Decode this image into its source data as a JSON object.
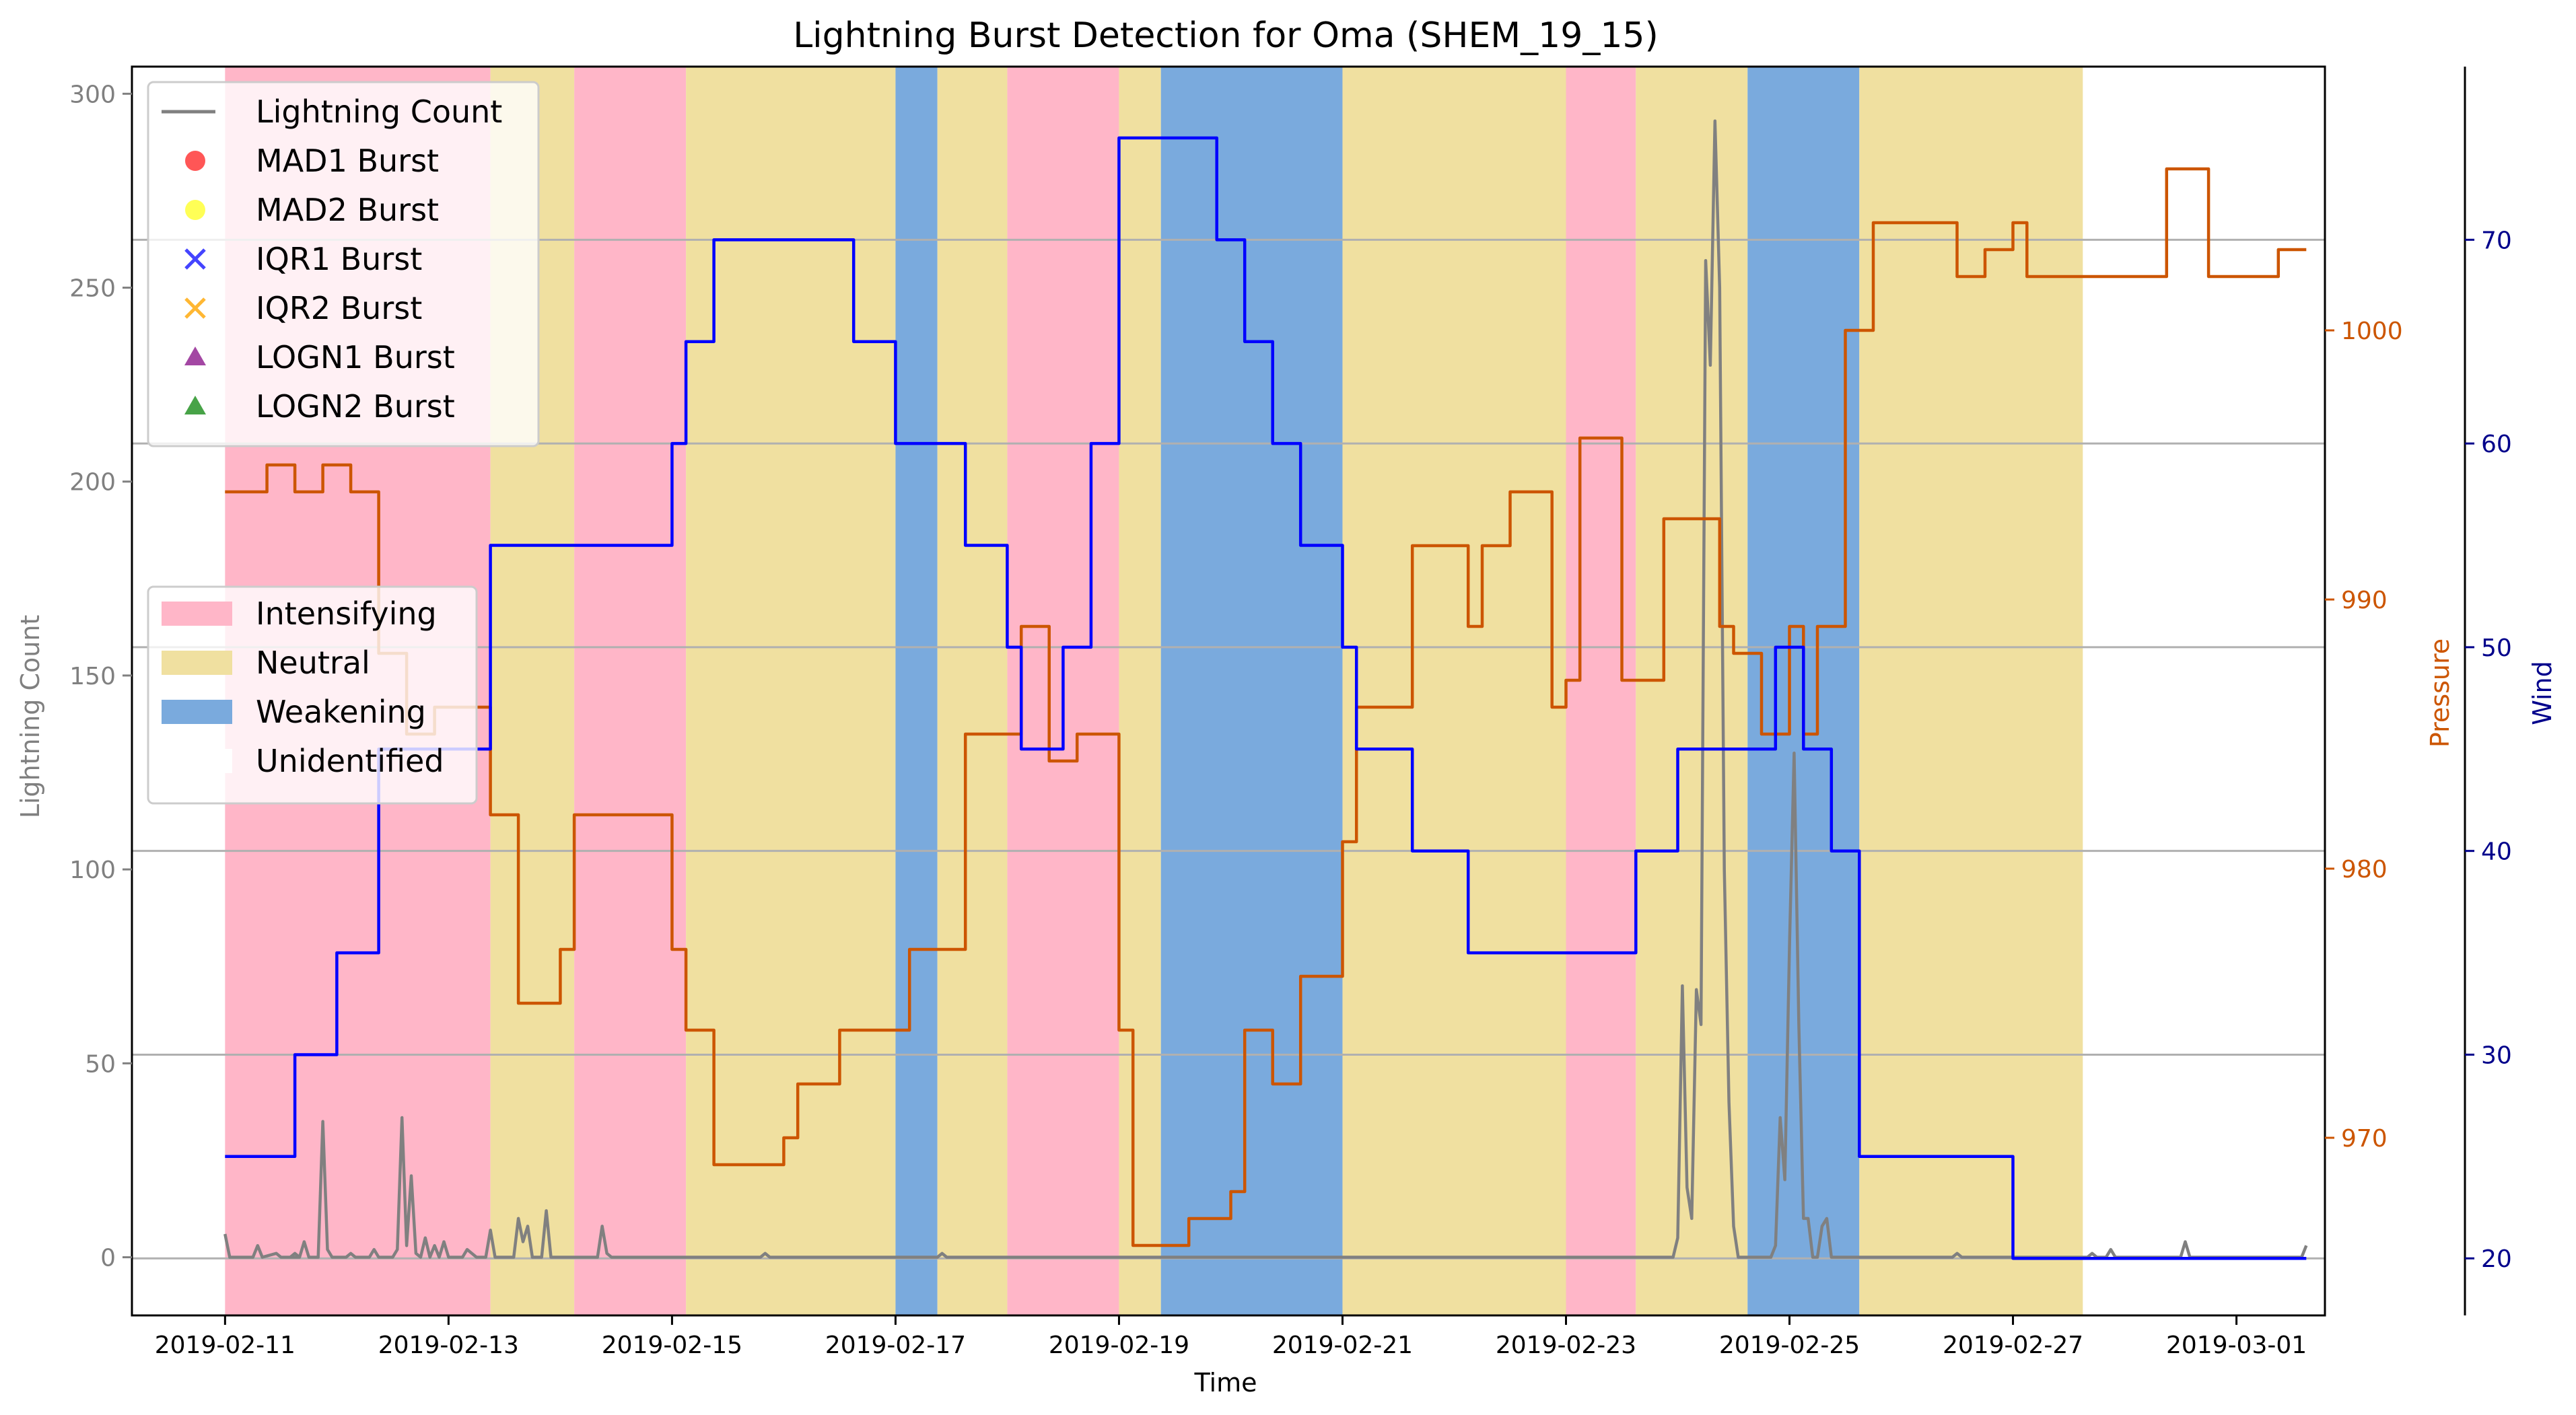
{
  "chart_data": {
    "type": "line",
    "title": "Lightning Burst Detection for Oma (SHEM_19_15)",
    "xlabel": "Time",
    "x_ticks": [
      "2019-02-11",
      "2019-02-13",
      "2019-02-15",
      "2019-02-17",
      "2019-02-19",
      "2019-02-21",
      "2019-02-23",
      "2019-02-25",
      "2019-02-27",
      "2019-03-01"
    ],
    "xlim": [
      "2019-02-10 04:00",
      "2019-03-01 19:00"
    ],
    "grid": true,
    "axes": {
      "lightning": {
        "label": "Lightning Count",
        "ylim": [
          -15,
          307
        ],
        "ticks": [
          0,
          50,
          100,
          150,
          200,
          250,
          300
        ],
        "color": "#808080",
        "position": "left"
      },
      "pressure": {
        "label": "Pressure",
        "ylim": [
          963.4,
          1009.8
        ],
        "ticks": [
          970,
          980,
          990,
          1000
        ],
        "color": "#cc5500",
        "position": "right"
      },
      "wind": {
        "label": "Wind",
        "ylim": [
          17.2,
          78.5
        ],
        "ticks": [
          20,
          30,
          40,
          50,
          60,
          70
        ],
        "color": "#00008b",
        "position": "far-right"
      }
    },
    "phases": [
      {
        "start": "2019-02-11 00:00",
        "end": "2019-02-13 09:00",
        "phase": "Intensifying"
      },
      {
        "start": "2019-02-13 09:00",
        "end": "2019-02-14 03:00",
        "phase": "Neutral"
      },
      {
        "start": "2019-02-14 03:00",
        "end": "2019-02-15 03:00",
        "phase": "Intensifying"
      },
      {
        "start": "2019-02-15 03:00",
        "end": "2019-02-17 00:00",
        "phase": "Neutral"
      },
      {
        "start": "2019-02-17 00:00",
        "end": "2019-02-17 09:00",
        "phase": "Weakening"
      },
      {
        "start": "2019-02-17 09:00",
        "end": "2019-02-18 00:00",
        "phase": "Neutral"
      },
      {
        "start": "2019-02-18 00:00",
        "end": "2019-02-19 00:00",
        "phase": "Intensifying"
      },
      {
        "start": "2019-02-19 00:00",
        "end": "2019-02-19 09:00",
        "phase": "Neutral"
      },
      {
        "start": "2019-02-19 09:00",
        "end": "2019-02-21 00:00",
        "phase": "Weakening"
      },
      {
        "start": "2019-02-21 00:00",
        "end": "2019-02-23 00:00",
        "phase": "Neutral"
      },
      {
        "start": "2019-02-23 00:00",
        "end": "2019-02-23 15:00",
        "phase": "Intensifying"
      },
      {
        "start": "2019-02-23 15:00",
        "end": "2019-02-24 15:00",
        "phase": "Neutral"
      },
      {
        "start": "2019-02-24 15:00",
        "end": "2019-02-25 15:00",
        "phase": "Weakening"
      },
      {
        "start": "2019-02-25 15:00",
        "end": "2019-02-27 15:00",
        "phase": "Neutral"
      }
    ],
    "series": [
      {
        "name": "Lightning Count",
        "axis": "lightning",
        "color": "#808080",
        "points": [
          [
            "2019-02-11 00:00",
            6
          ],
          [
            "2019-02-11 01:00",
            0
          ],
          [
            "2019-02-11 06:00",
            0
          ],
          [
            "2019-02-11 07:00",
            3
          ],
          [
            "2019-02-11 08:00",
            0
          ],
          [
            "2019-02-11 11:00",
            1
          ],
          [
            "2019-02-11 12:00",
            0
          ],
          [
            "2019-02-11 14:00",
            0
          ],
          [
            "2019-02-11 15:00",
            1
          ],
          [
            "2019-02-11 16:00",
            0
          ],
          [
            "2019-02-11 14:00",
            0
          ],
          [
            "2019-02-11 15:00",
            0
          ],
          [
            "2019-02-11 16:00",
            0
          ],
          [
            "2019-02-11 17:00",
            4
          ],
          [
            "2019-02-11 18:00",
            0
          ],
          [
            "2019-02-11 20:00",
            0
          ],
          [
            "2019-02-11 21:00",
            35
          ],
          [
            "2019-02-11 22:00",
            2
          ],
          [
            "2019-02-11 23:00",
            0
          ],
          [
            "2019-02-12 02:00",
            0
          ],
          [
            "2019-02-12 03:00",
            1
          ],
          [
            "2019-02-12 04:00",
            0
          ],
          [
            "2019-02-12 07:00",
            0
          ],
          [
            "2019-02-12 08:00",
            2
          ],
          [
            "2019-02-12 09:00",
            0
          ],
          [
            "2019-02-12 12:00",
            0
          ],
          [
            "2019-02-12 13:00",
            2
          ],
          [
            "2019-02-12 14:00",
            36
          ],
          [
            "2019-02-12 15:00",
            3
          ],
          [
            "2019-02-12 16:00",
            21
          ],
          [
            "2019-02-12 17:00",
            1
          ],
          [
            "2019-02-12 18:00",
            0
          ],
          [
            "2019-02-12 19:00",
            5
          ],
          [
            "2019-02-12 20:00",
            0
          ],
          [
            "2019-02-12 21:00",
            3
          ],
          [
            "2019-02-12 22:00",
            0
          ],
          [
            "2019-02-12 23:00",
            4
          ],
          [
            "2019-02-13 00:00",
            0
          ],
          [
            "2019-02-13 03:00",
            0
          ],
          [
            "2019-02-13 04:00",
            2
          ],
          [
            "2019-02-13 05:00",
            1
          ],
          [
            "2019-02-13 06:00",
            0
          ],
          [
            "2019-02-13 08:00",
            0
          ],
          [
            "2019-02-13 09:00",
            7
          ],
          [
            "2019-02-13 10:00",
            0
          ],
          [
            "2019-02-13 14:00",
            0
          ],
          [
            "2019-02-13 15:00",
            10
          ],
          [
            "2019-02-13 16:00",
            4
          ],
          [
            "2019-02-13 17:00",
            8
          ],
          [
            "2019-02-13 18:00",
            0
          ],
          [
            "2019-02-13 20:00",
            0
          ],
          [
            "2019-02-13 21:00",
            12
          ],
          [
            "2019-02-13 22:00",
            0
          ],
          [
            "2019-02-14 08:00",
            0
          ],
          [
            "2019-02-14 09:00",
            8
          ],
          [
            "2019-02-14 10:00",
            1
          ],
          [
            "2019-02-14 11:00",
            0
          ],
          [
            "2019-02-15 19:00",
            0
          ],
          [
            "2019-02-15 20:00",
            1
          ],
          [
            "2019-02-15 21:00",
            0
          ],
          [
            "2019-02-17 09:00",
            0
          ],
          [
            "2019-02-17 10:00",
            1
          ],
          [
            "2019-02-17 11:00",
            0
          ],
          [
            "2019-02-23 23:00",
            0
          ],
          [
            "2019-02-24 00:00",
            5
          ],
          [
            "2019-02-24 01:00",
            70
          ],
          [
            "2019-02-24 02:00",
            18
          ],
          [
            "2019-02-24 03:00",
            10
          ],
          [
            "2019-02-24 04:00",
            69
          ],
          [
            "2019-02-24 05:00",
            60
          ],
          [
            "2019-02-24 06:00",
            257
          ],
          [
            "2019-02-24 07:00",
            230
          ],
          [
            "2019-02-24 08:00",
            293
          ],
          [
            "2019-02-24 09:00",
            250
          ],
          [
            "2019-02-24 10:00",
            100
          ],
          [
            "2019-02-24 11:00",
            40
          ],
          [
            "2019-02-24 12:00",
            8
          ],
          [
            "2019-02-24 13:00",
            0
          ],
          [
            "2019-02-24 20:00",
            0
          ],
          [
            "2019-02-24 21:00",
            3
          ],
          [
            "2019-02-24 22:00",
            36
          ],
          [
            "2019-02-24 23:00",
            20
          ],
          [
            "2019-02-25 00:00",
            80
          ],
          [
            "2019-02-25 01:00",
            130
          ],
          [
            "2019-02-25 02:00",
            60
          ],
          [
            "2019-02-25 03:00",
            10
          ],
          [
            "2019-02-25 04:00",
            10
          ],
          [
            "2019-02-25 05:00",
            0
          ],
          [
            "2019-02-25 06:00",
            0
          ],
          [
            "2019-02-25 07:00",
            8
          ],
          [
            "2019-02-25 08:00",
            10
          ],
          [
            "2019-02-25 09:00",
            0
          ],
          [
            "2019-02-26 11:00",
            0
          ],
          [
            "2019-02-26 12:00",
            1
          ],
          [
            "2019-02-26 13:00",
            0
          ],
          [
            "2019-02-27 16:00",
            0
          ],
          [
            "2019-02-27 17:00",
            1
          ],
          [
            "2019-02-27 18:00",
            0
          ],
          [
            "2019-02-27 20:00",
            0
          ],
          [
            "2019-02-27 21:00",
            2
          ],
          [
            "2019-02-27 22:00",
            0
          ],
          [
            "2019-02-28 12:00",
            0
          ],
          [
            "2019-02-28 13:00",
            4
          ],
          [
            "2019-02-28 14:00",
            0
          ],
          [
            "2019-03-01 14:00",
            0
          ],
          [
            "2019-03-01 15:00",
            3
          ]
        ]
      },
      {
        "name": "Pressure",
        "axis": "pressure",
        "color": "#cc5500",
        "steps": [
          [
            "2019-02-11 00:00",
            994
          ],
          [
            "2019-02-11 09:00",
            995
          ],
          [
            "2019-02-11 15:00",
            994
          ],
          [
            "2019-02-11 21:00",
            995
          ],
          [
            "2019-02-12 03:00",
            994
          ],
          [
            "2019-02-12 09:00",
            988
          ],
          [
            "2019-02-12 15:00",
            985
          ],
          [
            "2019-02-12 21:00",
            986
          ],
          [
            "2019-02-13 09:00",
            982
          ],
          [
            "2019-02-13 15:00",
            975
          ],
          [
            "2019-02-14 00:00",
            977
          ],
          [
            "2019-02-14 03:00",
            982
          ],
          [
            "2019-02-15 00:00",
            977
          ],
          [
            "2019-02-15 03:00",
            974
          ],
          [
            "2019-02-15 09:00",
            969
          ],
          [
            "2019-02-16 00:00",
            970
          ],
          [
            "2019-02-16 03:00",
            972
          ],
          [
            "2019-02-16 12:00",
            974
          ],
          [
            "2019-02-17 03:00",
            977
          ],
          [
            "2019-02-17 15:00",
            985
          ],
          [
            "2019-02-18 03:00",
            989
          ],
          [
            "2019-02-18 09:00",
            984
          ],
          [
            "2019-02-18 15:00",
            985
          ],
          [
            "2019-02-19 00:00",
            974
          ],
          [
            "2019-02-19 03:00",
            966
          ],
          [
            "2019-02-19 15:00",
            967
          ],
          [
            "2019-02-20 00:00",
            968
          ],
          [
            "2019-02-20 03:00",
            974
          ],
          [
            "2019-02-20 09:00",
            972
          ],
          [
            "2019-02-20 15:00",
            976
          ],
          [
            "2019-02-21 00:00",
            981
          ],
          [
            "2019-02-21 03:00",
            986
          ],
          [
            "2019-02-21 15:00",
            992
          ],
          [
            "2019-02-22 03:00",
            989
          ],
          [
            "2019-02-22 06:00",
            992
          ],
          [
            "2019-02-22 12:00",
            994
          ],
          [
            "2019-02-22 21:00",
            986
          ],
          [
            "2019-02-23 00:00",
            987
          ],
          [
            "2019-02-23 03:00",
            996
          ],
          [
            "2019-02-23 12:00",
            987
          ],
          [
            "2019-02-23 21:00",
            993
          ],
          [
            "2019-02-24 09:00",
            989
          ],
          [
            "2019-02-24 12:00",
            988
          ],
          [
            "2019-02-24 18:00",
            985
          ],
          [
            "2019-02-25 00:00",
            989
          ],
          [
            "2019-02-25 03:00",
            985
          ],
          [
            "2019-02-25 06:00",
            989
          ],
          [
            "2019-02-25 12:00",
            1000
          ],
          [
            "2019-02-25 18:00",
            1004
          ],
          [
            "2019-02-26 12:00",
            1002
          ],
          [
            "2019-02-26 18:00",
            1003
          ],
          [
            "2019-02-27 00:00",
            1004
          ],
          [
            "2019-02-27 03:00",
            1002
          ],
          [
            "2019-02-27 18:00",
            1002
          ],
          [
            "2019-02-28 09:00",
            1006
          ],
          [
            "2019-02-28 18:00",
            1002
          ],
          [
            "2019-03-01 09:00",
            1003
          ],
          [
            "2019-03-01 15:00",
            1003
          ]
        ]
      },
      {
        "name": "Wind",
        "axis": "wind",
        "color": "#0000ff",
        "steps": [
          [
            "2019-02-11 00:00",
            25
          ],
          [
            "2019-02-11 15:00",
            30
          ],
          [
            "2019-02-12 00:00",
            35
          ],
          [
            "2019-02-12 09:00",
            45
          ],
          [
            "2019-02-13 09:00",
            55
          ],
          [
            "2019-02-15 00:00",
            60
          ],
          [
            "2019-02-15 03:00",
            65
          ],
          [
            "2019-02-15 09:00",
            70
          ],
          [
            "2019-02-16 15:00",
            65
          ],
          [
            "2019-02-17 00:00",
            60
          ],
          [
            "2019-02-17 15:00",
            55
          ],
          [
            "2019-02-18 00:00",
            50
          ],
          [
            "2019-02-18 03:00",
            45
          ],
          [
            "2019-02-18 12:00",
            50
          ],
          [
            "2019-02-18 18:00",
            60
          ],
          [
            "2019-02-19 00:00",
            75
          ],
          [
            "2019-02-19 21:00",
            70
          ],
          [
            "2019-02-20 03:00",
            65
          ],
          [
            "2019-02-20 09:00",
            60
          ],
          [
            "2019-02-20 15:00",
            55
          ],
          [
            "2019-02-21 00:00",
            50
          ],
          [
            "2019-02-21 03:00",
            45
          ],
          [
            "2019-02-21 15:00",
            40
          ],
          [
            "2019-02-22 03:00",
            35
          ],
          [
            "2019-02-23 12:00",
            35
          ],
          [
            "2019-02-23 15:00",
            40
          ],
          [
            "2019-02-24 00:00",
            45
          ],
          [
            "2019-02-24 21:00",
            50
          ],
          [
            "2019-02-25 03:00",
            45
          ],
          [
            "2019-02-25 09:00",
            40
          ],
          [
            "2019-02-25 15:00",
            25
          ],
          [
            "2019-02-26 15:00",
            25
          ],
          [
            "2019-02-27 00:00",
            20
          ],
          [
            "2019-03-01 15:00",
            20
          ]
        ]
      }
    ],
    "legend_series": {
      "placement": "upper-left",
      "entries": [
        {
          "label": "Lightning Count",
          "marker": "line",
          "color": "#808080"
        },
        {
          "label": "MAD1 Burst",
          "marker": "circle",
          "color": "#ff4444"
        },
        {
          "label": "MAD2 Burst",
          "marker": "circle",
          "color": "#ffff44"
        },
        {
          "label": "IQR1 Burst",
          "marker": "x",
          "color": "#4444ff"
        },
        {
          "label": "IQR2 Burst",
          "marker": "x",
          "color": "#ffb733"
        },
        {
          "label": "LOGN1 Burst",
          "marker": "triangle",
          "color": "#993399"
        },
        {
          "label": "LOGN2 Burst",
          "marker": "triangle",
          "color": "#339933"
        }
      ]
    },
    "legend_phases": {
      "placement": "center-left",
      "entries": [
        {
          "label": "Intensifying",
          "color": "#ffb6c8"
        },
        {
          "label": "Neutral",
          "color": "#f0e0a0"
        },
        {
          "label": "Weakening",
          "color": "#7aaadd"
        },
        {
          "label": "Unidentified",
          "color": "#ffffff"
        }
      ]
    }
  }
}
